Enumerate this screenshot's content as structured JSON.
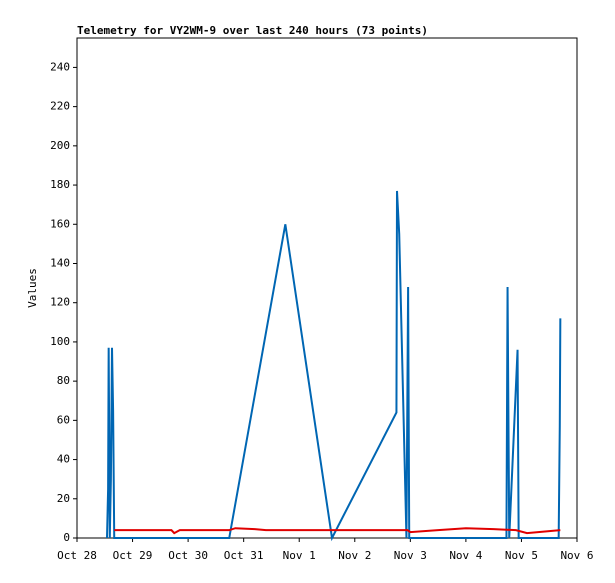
{
  "chart_data": {
    "type": "line",
    "title": "Telemetry for VY2WM-9 over last 240 hours (73 points)",
    "y_label": "Values",
    "xlim": [
      0,
      9
    ],
    "ylim": [
      0,
      255
    ],
    "xticks": [
      {
        "value": 0,
        "label": "Oct 28"
      },
      {
        "value": 1,
        "label": "Oct 29"
      },
      {
        "value": 2,
        "label": "Oct 30"
      },
      {
        "value": 3,
        "label": "Oct 31"
      },
      {
        "value": 4,
        "label": "Nov 1"
      },
      {
        "value": 5,
        "label": "Nov 2"
      },
      {
        "value": 6,
        "label": "Nov 3"
      },
      {
        "value": 7,
        "label": "Nov 4"
      },
      {
        "value": 8,
        "label": "Nov 5"
      },
      {
        "value": 9,
        "label": "Nov 6"
      }
    ],
    "yticks": [
      0,
      20,
      40,
      60,
      80,
      100,
      120,
      140,
      160,
      180,
      200,
      220,
      240
    ],
    "series": [
      {
        "color": "#0066b3",
        "x": [
          0.54,
          0.56,
          0.57,
          0.59,
          0.61,
          0.63,
          0.65,
          0.67,
          2.74,
          3.75,
          4.59,
          5.75,
          5.76,
          5.8,
          5.93,
          5.96,
          5.98,
          7.73,
          7.75,
          7.78,
          7.93,
          7.95,
          8.67,
          8.69,
          8.7
        ],
        "values": [
          0,
          25,
          97,
          0,
          30,
          97,
          65,
          0,
          0,
          160,
          0,
          64,
          177,
          155,
          0,
          128,
          0,
          0,
          128,
          0,
          96,
          0,
          0,
          57,
          112
        ]
      },
      {
        "color": "#e00000",
        "x": [
          0.67,
          1.7,
          1.75,
          1.85,
          2.74,
          2.85,
          3.2,
          3.4,
          5.95,
          6.0,
          6.5,
          7.0,
          7.5,
          7.9,
          8.1,
          8.3,
          8.7
        ],
        "values": [
          4,
          4,
          2.5,
          4,
          4,
          5,
          4.5,
          4,
          4,
          3,
          4,
          5,
          4.5,
          4,
          2.5,
          3,
          4
        ]
      }
    ]
  }
}
